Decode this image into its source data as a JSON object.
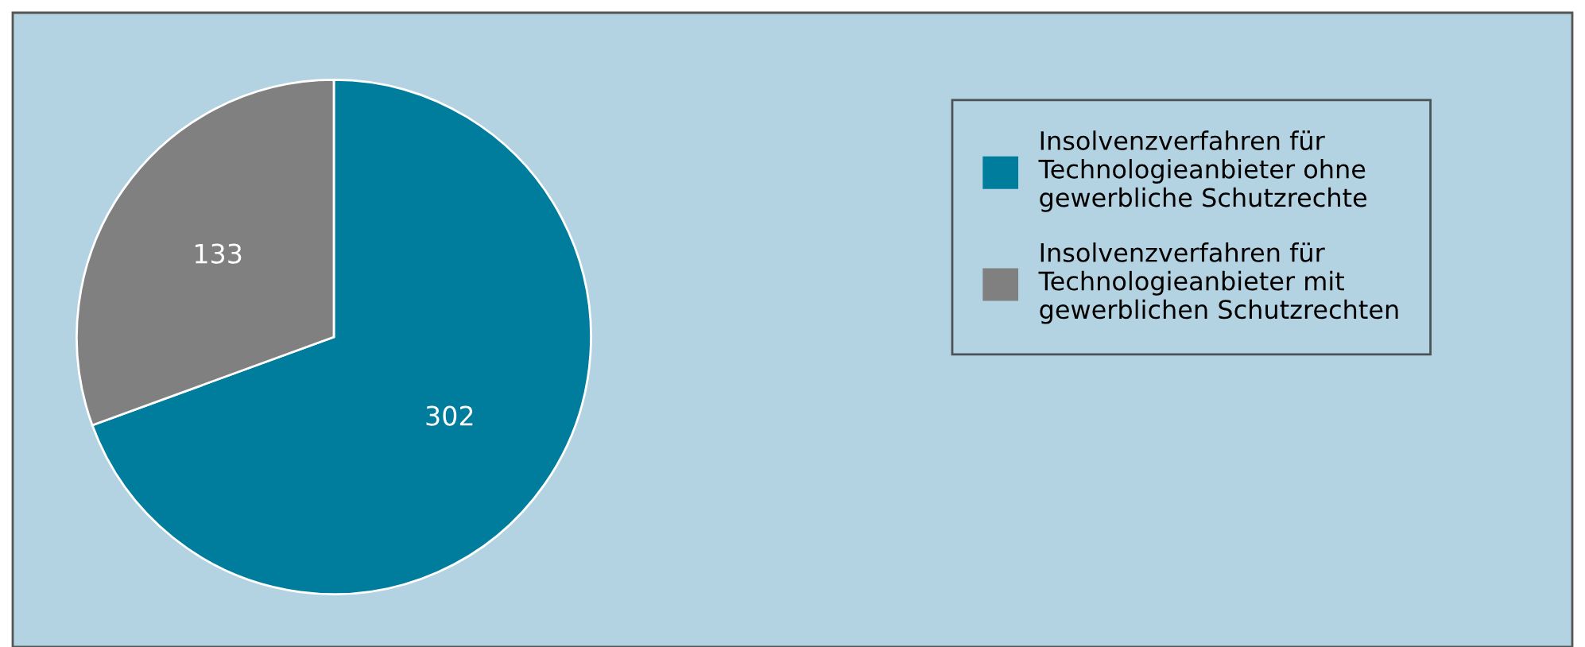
{
  "chart_data": {
    "type": "pie",
    "categories": [
      "Insolvenzverfahren für\nTechnologieanbieter ohne\ngewerbliche Schutzrechte",
      "Insolvenzverfahren für\nTechnologieanbieter mit\ngewerblichen Schutzrechten"
    ],
    "values": [
      302,
      133
    ],
    "colors": [
      "#007c9c",
      "#808080"
    ],
    "data_labels": true,
    "legend": "right"
  }
}
